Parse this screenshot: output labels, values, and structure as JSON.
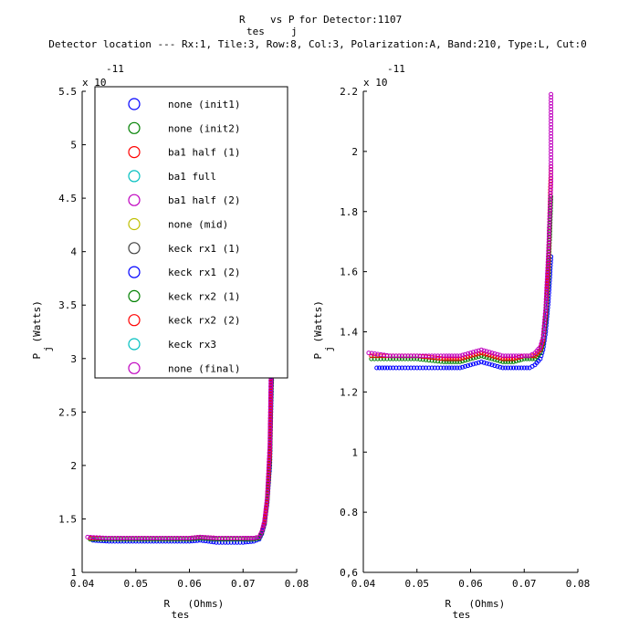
{
  "title": {
    "line1_parts": [
      "R",
      "tes",
      "vs P",
      "j",
      " for Detector:1107"
    ],
    "line2": "Detector location --- Rx:1, Tile:3, Row:8, Col:3, Polarization:A, Band:210, Type:L, Cut:0"
  },
  "chart_data": [
    {
      "type": "scatter",
      "xlabel_main": "R",
      "xlabel_sub": "tes",
      "xlabel_unit": "(Ohms)",
      "ylabel_main": "P",
      "ylabel_sub": "j",
      "ylabel_unit": "(Watts)",
      "y_multiplier": "x 10",
      "y_exponent": "-11",
      "xlim": [
        0.04,
        0.08
      ],
      "ylim": [
        1.0,
        5.5
      ],
      "x_ticks": [
        "0.04",
        "0.05",
        "0.06",
        "0.07",
        "0.08"
      ],
      "y_ticks": [
        "1",
        "1.5",
        "2",
        "2.5",
        "3",
        "3.5",
        "4",
        "4.5",
        "5",
        "5.5"
      ],
      "grid": false,
      "legend_position": "top-left",
      "legend": [
        {
          "label": "none (init1)",
          "color": "#0000ff"
        },
        {
          "label": "none (init2)",
          "color": "#008000"
        },
        {
          "label": "ba1 half (1)",
          "color": "#ff0000"
        },
        {
          "label": "ba1 full",
          "color": "#00bfbf"
        },
        {
          "label": "ba1 half (2)",
          "color": "#bf00bf"
        },
        {
          "label": "none (mid)",
          "color": "#bfbf00"
        },
        {
          "label": "keck rx1 (1)",
          "color": "#404040"
        },
        {
          "label": "keck rx1 (2)",
          "color": "#0000ff"
        },
        {
          "label": "keck rx2 (1)",
          "color": "#008000"
        },
        {
          "label": "keck rx2 (2)",
          "color": "#ff0000"
        },
        {
          "label": "keck rx3",
          "color": "#00bfbf"
        },
        {
          "label": "none (final)",
          "color": "#bf00bf"
        }
      ],
      "series": [
        {
          "color": "#0000ff",
          "x": [
            0.042,
            0.045,
            0.05,
            0.055,
            0.06,
            0.062,
            0.065,
            0.07,
            0.072,
            0.073,
            0.0735,
            0.074,
            0.0745,
            0.075,
            0.0752,
            0.0755
          ],
          "y": [
            1.3,
            1.29,
            1.29,
            1.29,
            1.29,
            1.3,
            1.28,
            1.28,
            1.29,
            1.31,
            1.36,
            1.45,
            1.65,
            2.0,
            2.5,
            3.1
          ]
        },
        {
          "color": "#008000",
          "x": [
            0.0415,
            0.045,
            0.05,
            0.055,
            0.06,
            0.062,
            0.065,
            0.07,
            0.072,
            0.073,
            0.0735,
            0.074,
            0.0745,
            0.075,
            0.0752,
            0.0755
          ],
          "y": [
            1.31,
            1.31,
            1.31,
            1.31,
            1.31,
            1.32,
            1.31,
            1.31,
            1.31,
            1.32,
            1.37,
            1.46,
            1.66,
            2.05,
            2.6,
            3.3
          ]
        },
        {
          "color": "#ff0000",
          "x": [
            0.0415,
            0.045,
            0.05,
            0.055,
            0.06,
            0.062,
            0.065,
            0.07,
            0.072,
            0.073,
            0.0735,
            0.074,
            0.0745,
            0.075,
            0.0752,
            0.0755
          ],
          "y": [
            1.32,
            1.32,
            1.32,
            1.32,
            1.32,
            1.33,
            1.32,
            1.32,
            1.32,
            1.33,
            1.38,
            1.47,
            1.68,
            2.1,
            2.7,
            3.5
          ]
        },
        {
          "color": "#bf00bf",
          "x": [
            0.041,
            0.045,
            0.05,
            0.055,
            0.06,
            0.062,
            0.065,
            0.07,
            0.072,
            0.073,
            0.0735,
            0.074,
            0.0745,
            0.075,
            0.0752,
            0.0755
          ],
          "y": [
            1.33,
            1.32,
            1.32,
            1.32,
            1.32,
            1.33,
            1.32,
            1.32,
            1.32,
            1.33,
            1.38,
            1.48,
            1.7,
            2.2,
            2.9,
            3.9
          ]
        }
      ]
    },
    {
      "type": "scatter",
      "xlabel_main": "R",
      "xlabel_sub": "tes",
      "xlabel_unit": "(Ohms)",
      "ylabel_main": "P",
      "ylabel_sub": "j",
      "ylabel_unit": "(Watts)",
      "y_multiplier": "x 10",
      "y_exponent": "-11",
      "xlim": [
        0.04,
        0.08
      ],
      "ylim": [
        0.6,
        2.2
      ],
      "x_ticks": [
        "0.04",
        "0.05",
        "0.06",
        "0.07",
        "0.08"
      ],
      "y_ticks": [
        "0,6",
        "0.8",
        "1",
        "1.2",
        "1.4",
        "1.6",
        "1.8",
        "2",
        "2.2"
      ],
      "grid": false,
      "series": [
        {
          "color": "#0000ff",
          "x": [
            0.0425,
            0.045,
            0.05,
            0.055,
            0.058,
            0.06,
            0.062,
            0.064,
            0.066,
            0.068,
            0.07,
            0.071,
            0.072,
            0.073,
            0.0735,
            0.074,
            0.0745,
            0.075
          ],
          "y": [
            1.28,
            1.28,
            1.28,
            1.28,
            1.28,
            1.29,
            1.3,
            1.29,
            1.28,
            1.28,
            1.28,
            1.28,
            1.29,
            1.31,
            1.34,
            1.4,
            1.5,
            1.65
          ]
        },
        {
          "color": "#008000",
          "x": [
            0.0415,
            0.045,
            0.05,
            0.055,
            0.058,
            0.06,
            0.062,
            0.064,
            0.066,
            0.068,
            0.07,
            0.071,
            0.072,
            0.073,
            0.0735,
            0.074,
            0.0745,
            0.075
          ],
          "y": [
            1.31,
            1.31,
            1.31,
            1.3,
            1.3,
            1.31,
            1.32,
            1.31,
            1.3,
            1.3,
            1.31,
            1.31,
            1.31,
            1.33,
            1.36,
            1.44,
            1.58,
            1.85
          ]
        },
        {
          "color": "#ff0000",
          "x": [
            0.0415,
            0.045,
            0.05,
            0.055,
            0.058,
            0.06,
            0.062,
            0.064,
            0.066,
            0.068,
            0.07,
            0.071,
            0.072,
            0.073,
            0.0735,
            0.074,
            0.0745,
            0.075
          ],
          "y": [
            1.32,
            1.32,
            1.32,
            1.31,
            1.31,
            1.32,
            1.33,
            1.32,
            1.31,
            1.31,
            1.32,
            1.32,
            1.32,
            1.34,
            1.37,
            1.46,
            1.62,
            1.95
          ]
        },
        {
          "color": "#bf00bf",
          "x": [
            0.041,
            0.045,
            0.05,
            0.055,
            0.058,
            0.06,
            0.062,
            0.064,
            0.066,
            0.068,
            0.07,
            0.071,
            0.072,
            0.073,
            0.0735,
            0.074,
            0.0745,
            0.075,
            0.075,
            0.075
          ],
          "y": [
            1.33,
            1.32,
            1.32,
            1.32,
            1.32,
            1.33,
            1.34,
            1.33,
            1.32,
            1.32,
            1.32,
            1.32,
            1.33,
            1.35,
            1.38,
            1.48,
            1.66,
            1.9,
            2.05,
            2.19
          ]
        }
      ]
    }
  ]
}
